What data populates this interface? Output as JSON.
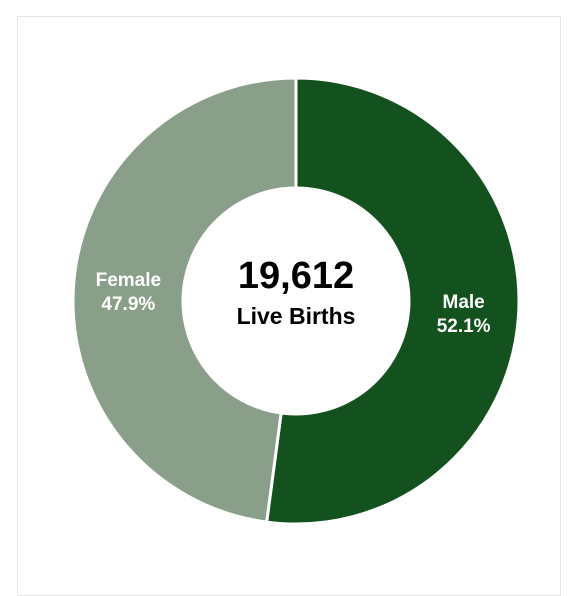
{
  "chart_data": {
    "type": "pie",
    "variant": "donut",
    "center_value": "19,612",
    "center_label": "Live Births",
    "slices": [
      {
        "label": "Male",
        "percent_label": "52.1%",
        "value": 52.1,
        "color": "#13521e"
      },
      {
        "label": "Female",
        "percent_label": "47.9%",
        "value": 47.9,
        "color": "#8a9f89"
      }
    ],
    "start_angle_deg": 0,
    "direction": "clockwise",
    "legend": "none"
  }
}
